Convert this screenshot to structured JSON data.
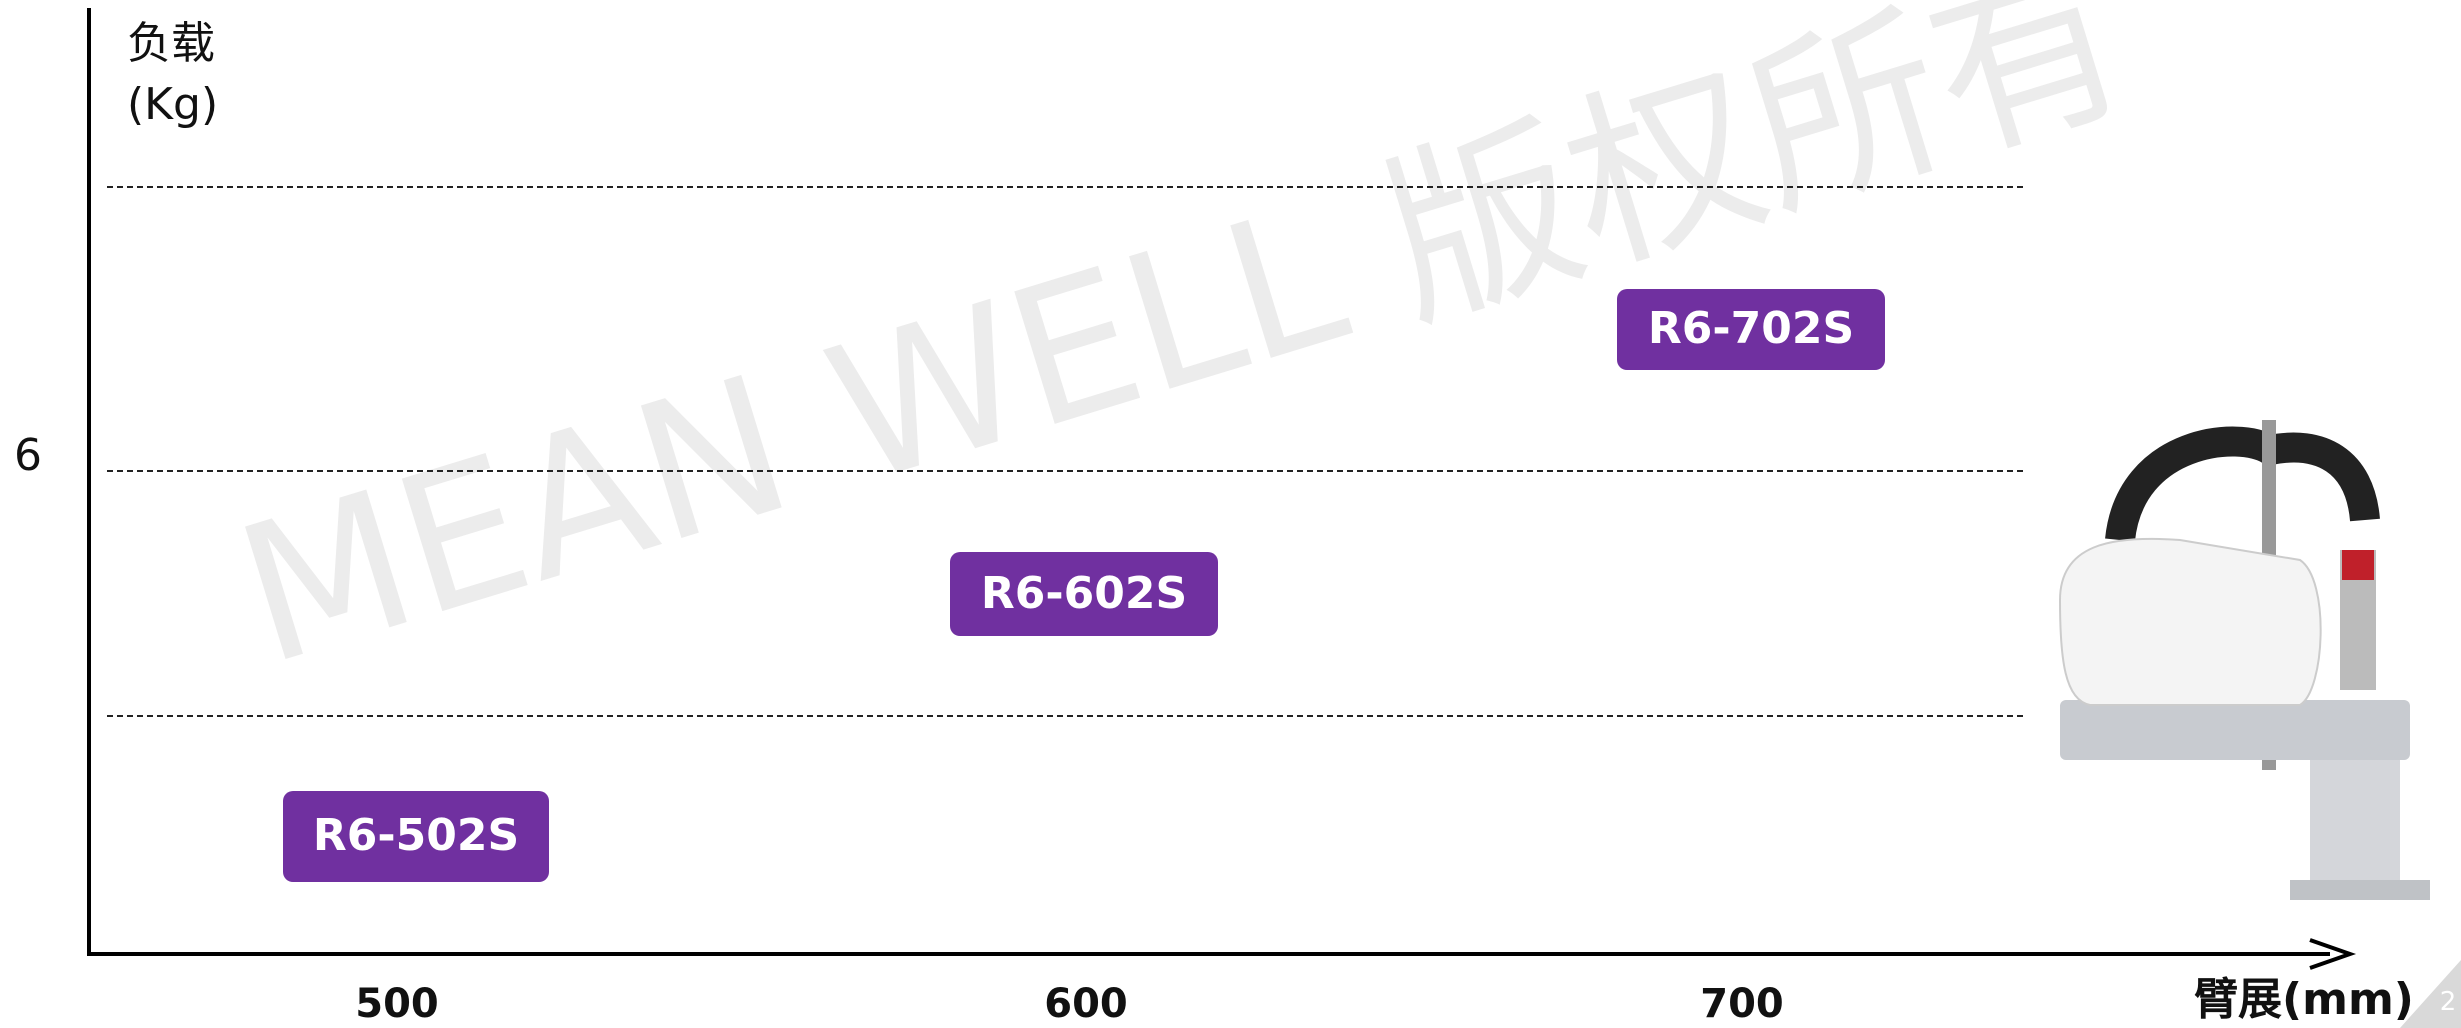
{
  "watermark": "MEAN WELL 版权所有",
  "y_axis": {
    "label_line1": "负载",
    "label_line2": "(Kg)",
    "tick": "6"
  },
  "x_axis": {
    "label": "臂展(mm)",
    "ticks": [
      "500",
      "600",
      "700"
    ]
  },
  "models": [
    "R6-502S",
    "R6-602S",
    "R6-702S"
  ],
  "page_number": "2"
}
